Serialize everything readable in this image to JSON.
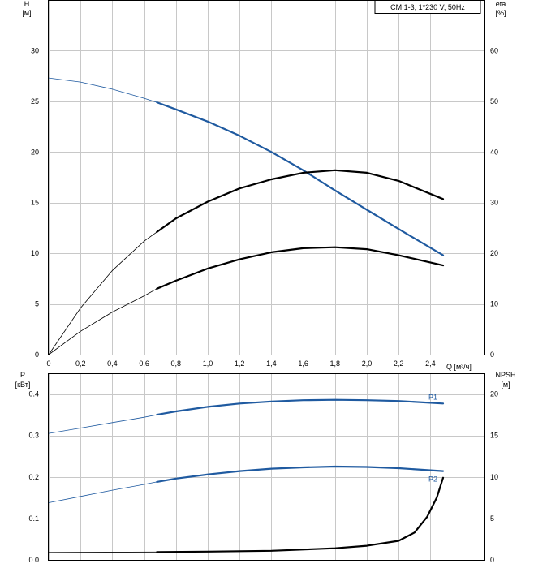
{
  "chart_data": [
    {
      "type": "line",
      "legend_box": "CM 1-3, 1*230 V, 50Hz",
      "x_ticks": [
        "0",
        "0,2",
        "0,4",
        "0,6",
        "0,8",
        "1,0",
        "1,2",
        "1,4",
        "1,6",
        "1,8",
        "2,0",
        "2,2",
        "2,4"
      ],
      "xlabel": "Q [м³/ч]",
      "xlim": [
        0,
        2.74
      ],
      "ylabel_left": [
        "H",
        "[м]"
      ],
      "ylim_left": [
        0,
        35
      ],
      "y_ticks_left": [
        "0",
        "5",
        "10",
        "15",
        "20",
        "25",
        "30"
      ],
      "ylabel_right": [
        "eta",
        "[%]"
      ],
      "ylim_right": [
        0,
        70
      ],
      "y_ticks_right": [
        "0",
        "10",
        "20",
        "30",
        "40",
        "50",
        "60"
      ],
      "grid": true,
      "operating_range_start_q": 0.68,
      "series": [
        {
          "axis": "left",
          "color": "#1f5aa0",
          "x": [
            0,
            0.2,
            0.4,
            0.6,
            0.68,
            0.8,
            1.0,
            1.2,
            1.4,
            1.6,
            1.8,
            2.0,
            2.2,
            2.48
          ],
          "values": [
            27.3,
            26.9,
            26.2,
            25.3,
            24.9,
            24.2,
            23.0,
            21.6,
            20.0,
            18.2,
            16.2,
            14.3,
            12.4,
            9.8
          ]
        },
        {
          "axis": "right",
          "color": "#000000",
          "x": [
            0,
            0.2,
            0.4,
            0.6,
            0.68,
            0.8,
            1.0,
            1.2,
            1.4,
            1.6,
            1.8,
            2.0,
            2.2,
            2.48
          ],
          "values": [
            0,
            9.2,
            16.6,
            22.4,
            24.2,
            26.9,
            30.2,
            32.8,
            34.6,
            35.9,
            36.4,
            35.9,
            34.3,
            30.7
          ]
        },
        {
          "axis": "left",
          "color": "#000000",
          "x": [
            0,
            0.2,
            0.4,
            0.6,
            0.68,
            0.8,
            1.0,
            1.2,
            1.4,
            1.6,
            1.8,
            2.0,
            2.2,
            2.48
          ],
          "values": [
            0,
            2.3,
            4.2,
            5.8,
            6.5,
            7.3,
            8.5,
            9.4,
            10.1,
            10.5,
            10.6,
            10.4,
            9.8,
            8.8
          ]
        }
      ]
    },
    {
      "type": "line",
      "x_ticks": [
        "0",
        "0,2",
        "0,4",
        "0,6",
        "0,8",
        "1,0",
        "1,2",
        "1,4",
        "1,6",
        "1,8",
        "2,0",
        "2,2",
        "2,4"
      ],
      "xlim": [
        0,
        2.74
      ],
      "ylabel_left": [
        "P",
        "[кВт]"
      ],
      "ylim_left": [
        0,
        0.45
      ],
      "y_ticks_left": [
        "0.0",
        "0.1",
        "0.2",
        "0.3",
        "0.4"
      ],
      "ylabel_right": [
        "NPSH",
        "[м]"
      ],
      "ylim_right": [
        0,
        22.5
      ],
      "y_ticks_right": [
        "0",
        "5",
        "10",
        "15",
        "20"
      ],
      "grid": true,
      "operating_range_start_q": 0.68,
      "series": [
        {
          "name": "P1",
          "axis": "left",
          "color": "#1f5aa0",
          "x": [
            0,
            0.2,
            0.4,
            0.6,
            0.68,
            0.8,
            1.0,
            1.2,
            1.4,
            1.6,
            1.8,
            2.0,
            2.2,
            2.48
          ],
          "values": [
            0.305,
            0.318,
            0.331,
            0.344,
            0.35,
            0.358,
            0.369,
            0.377,
            0.382,
            0.385,
            0.386,
            0.385,
            0.383,
            0.377
          ]
        },
        {
          "name": "P2",
          "axis": "left",
          "color": "#1f5aa0",
          "x": [
            0,
            0.2,
            0.4,
            0.6,
            0.68,
            0.8,
            1.0,
            1.2,
            1.4,
            1.6,
            1.8,
            2.0,
            2.2,
            2.48
          ],
          "values": [
            0.138,
            0.153,
            0.168,
            0.182,
            0.188,
            0.196,
            0.206,
            0.214,
            0.22,
            0.223,
            0.225,
            0.224,
            0.221,
            0.214
          ]
        },
        {
          "axis": "right",
          "color": "#000000",
          "x": [
            0,
            0.68,
            1.0,
            1.4,
            1.8,
            2.0,
            2.2,
            2.3,
            2.38,
            2.44,
            2.48
          ],
          "values": [
            0.9,
            0.95,
            1.0,
            1.1,
            1.4,
            1.7,
            2.3,
            3.3,
            5.2,
            7.5,
            9.9
          ]
        }
      ]
    }
  ]
}
